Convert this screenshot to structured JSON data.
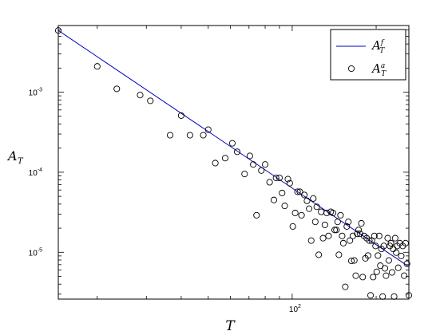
{
  "chart_data": {
    "type": "scatter",
    "title": "",
    "xlabel": "T",
    "ylabel": "A",
    "ylabel_sub": "T",
    "x_scale": "log",
    "y_scale": "log",
    "xlim": [
      14.5,
      262
    ],
    "ylim": [
      2.6e-06,
      0.0068
    ],
    "x_ticks": [
      {
        "value": 100,
        "base": "10",
        "exp": "2"
      }
    ],
    "y_ticks": [
      {
        "value": 1e-05,
        "base": "10",
        "exp": "-5"
      },
      {
        "value": 0.0001,
        "base": "10",
        "exp": "-4"
      },
      {
        "value": 0.001,
        "base": "10",
        "exp": "-3"
      }
    ],
    "grid": false,
    "legend_position": "top-right",
    "series": [
      {
        "name": "A_T^f",
        "legend_base": "A",
        "legend_sub": "T",
        "legend_sup": "f",
        "type": "line",
        "color": "#0000bf",
        "x": [
          14.5,
          262
        ],
        "y": [
          0.0059,
          6.6e-06
        ]
      },
      {
        "name": "A_T^a",
        "legend_base": "A",
        "legend_sub": "T",
        "legend_sup": "a",
        "type": "scatter",
        "marker": "circle-open",
        "color": "#000000",
        "points": [
          [
            14.5,
            0.0059
          ],
          [
            20.0,
            0.0021
          ],
          [
            23.5,
            0.0011
          ],
          [
            28.5,
            0.00092
          ],
          [
            31.0,
            0.00078
          ],
          [
            36.5,
            0.00029
          ],
          [
            40.0,
            0.00051
          ],
          [
            43.0,
            0.00029
          ],
          [
            48.0,
            0.00029
          ],
          [
            50.0,
            0.00034
          ],
          [
            53.0,
            0.00013
          ],
          [
            57.5,
            0.00015
          ],
          [
            61.0,
            0.00023
          ],
          [
            63.5,
            0.00018
          ],
          [
            67.5,
            9.5e-05
          ],
          [
            70.5,
            0.00016
          ],
          [
            72.5,
            0.000125
          ],
          [
            74.5,
            2.9e-05
          ],
          [
            77.5,
            0.000105
          ],
          [
            80.0,
            0.000125
          ],
          [
            83.0,
            7.5e-05
          ],
          [
            86.0,
            4.5e-05
          ],
          [
            87.5,
            8.5e-05
          ],
          [
            90.0,
            8.5e-05
          ],
          [
            92.0,
            5.5e-05
          ],
          [
            94.0,
            3.8e-05
          ],
          [
            96.5,
            8.2e-05
          ],
          [
            98.0,
            7.3e-05
          ],
          [
            100.5,
            2.1e-05
          ],
          [
            102.5,
            3.1e-05
          ],
          [
            104.5,
            5.7e-05
          ],
          [
            106.5,
            5.7e-05
          ],
          [
            108.0,
            2.9e-05
          ],
          [
            110.5,
            5.2e-05
          ],
          [
            113.0,
            4.4e-05
          ],
          [
            115.0,
            3.5e-05
          ],
          [
            117.0,
            1.4e-05
          ],
          [
            119.0,
            4.7e-05
          ],
          [
            121.0,
            2.4e-05
          ],
          [
            122.5,
            3.7e-05
          ],
          [
            124.5,
            9.3e-06
          ],
          [
            127.0,
            3.2e-05
          ],
          [
            129.0,
            1.5e-05
          ],
          [
            131.0,
            2.2e-05
          ],
          [
            133.0,
            3.1e-05
          ],
          [
            135.0,
            1.6e-05
          ],
          [
            137.5,
            3.2e-05
          ],
          [
            140.0,
            3.1e-05
          ],
          [
            142.0,
            1.9e-05
          ],
          [
            144.0,
            1.9e-05
          ],
          [
            145.5,
            2.4e-05
          ],
          [
            147.0,
            9.3e-06
          ],
          [
            149.0,
            2.9e-05
          ],
          [
            151.0,
            1.6e-05
          ],
          [
            152.5,
            1.3e-05
          ],
          [
            155.0,
            3.7e-06
          ],
          [
            157.0,
            2.1e-05
          ],
          [
            159.0,
            2.4e-05
          ],
          [
            161.0,
            1.4e-05
          ],
          [
            163.0,
            7.8e-06
          ],
          [
            165.0,
            1.6e-05
          ],
          [
            167.0,
            7.9e-06
          ],
          [
            169.0,
            5.1e-06
          ],
          [
            171.0,
            1.7e-05
          ],
          [
            173.0,
            1.9e-05
          ],
          [
            175.0,
            1.7e-05
          ],
          [
            177.0,
            2.3e-05
          ],
          [
            179.0,
            4.9e-06
          ],
          [
            181.0,
            1.6e-05
          ],
          [
            183.0,
            8.4e-06
          ],
          [
            185.0,
            1.5e-05
          ],
          [
            187.0,
            9.1e-06
          ],
          [
            189.0,
            1.4e-05
          ],
          [
            191.0,
            2.9e-06
          ],
          [
            193.0,
            1.4e-05
          ],
          [
            195.0,
            4.9e-06
          ],
          [
            197.0,
            1.6e-05
          ],
          [
            199.0,
            1.2e-05
          ],
          [
            201.0,
            5.7e-06
          ],
          [
            203.0,
            9.1e-06
          ],
          [
            205.0,
            1.6e-05
          ],
          [
            207.0,
            6.8e-06
          ],
          [
            209.0,
            1.1e-05
          ],
          [
            211.0,
            2.8e-06
          ],
          [
            213.0,
            1.2e-05
          ],
          [
            215.0,
            6.3e-06
          ],
          [
            217.0,
            5.1e-06
          ],
          [
            220.0,
            1.5e-05
          ],
          [
            222.0,
            7.9e-06
          ],
          [
            224.0,
            1.2e-05
          ],
          [
            226.0,
            1.3e-05
          ],
          [
            228.0,
            5.6e-06
          ],
          [
            230.0,
            1.1e-05
          ],
          [
            232.0,
            2.8e-06
          ],
          [
            234.0,
            1.5e-05
          ],
          [
            236.0,
            9.9e-06
          ],
          [
            238.0,
            1.2e-05
          ],
          [
            240.0,
            6.4e-06
          ],
          [
            243.0,
            1.3e-05
          ],
          [
            246.0,
            9e-06
          ],
          [
            249.0,
            1.2e-05
          ],
          [
            252.0,
            5.1e-06
          ],
          [
            255.0,
            1.3e-05
          ],
          [
            258.0,
            7.2e-06
          ],
          [
            262.0,
            2.9e-06
          ]
        ]
      }
    ]
  }
}
